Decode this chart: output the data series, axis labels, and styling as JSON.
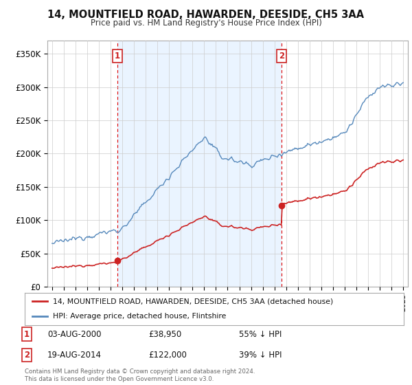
{
  "title": "14, MOUNTFIELD ROAD, HAWARDEN, DEESIDE, CH5 3AA",
  "subtitle": "Price paid vs. HM Land Registry's House Price Index (HPI)",
  "hpi_color": "#5588bb",
  "hpi_fill_color": "#ddeeff",
  "price_color": "#cc2222",
  "marker_color": "#cc2222",
  "background_color": "#ffffff",
  "plot_bg_color": "#ffffff",
  "ylim": [
    0,
    370000
  ],
  "yticks": [
    0,
    50000,
    100000,
    150000,
    200000,
    250000,
    300000,
    350000
  ],
  "ytick_labels": [
    "£0",
    "£50K",
    "£100K",
    "£150K",
    "£200K",
    "£250K",
    "£300K",
    "£350K"
  ],
  "xlim_start": 1994.6,
  "xlim_end": 2025.4,
  "sale1_x": 2000.58,
  "sale1_y": 38950,
  "sale1_label": "1",
  "sale1_date": "03-AUG-2000",
  "sale1_price": "£38,950",
  "sale1_hpi": "55% ↓ HPI",
  "sale2_x": 2014.62,
  "sale2_y": 122000,
  "sale2_label": "2",
  "sale2_date": "19-AUG-2014",
  "sale2_price": "£122,000",
  "sale2_hpi": "39% ↓ HPI",
  "legend_line1": "14, MOUNTFIELD ROAD, HAWARDEN, DEESIDE, CH5 3AA (detached house)",
  "legend_line2": "HPI: Average price, detached house, Flintshire",
  "footer": "Contains HM Land Registry data © Crown copyright and database right 2024.\nThis data is licensed under the Open Government Licence v3.0.",
  "vline_color": "#dd0000",
  "grid_color": "#cccccc"
}
